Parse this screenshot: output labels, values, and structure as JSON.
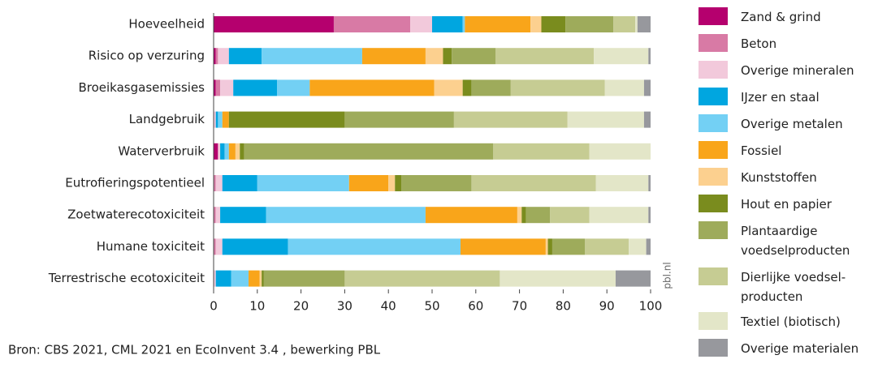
{
  "chart_data": {
    "type": "stacked_bar_horizontal",
    "categories": [
      "Hoeveelheid",
      "Risico op verzuring",
      "Broeikasgasemissies",
      "Landgebruik",
      "Waterverbruik",
      "Eutrofieringspotentieel",
      "Zoetwaterecotoxiciteit",
      "Humane toxiciteit",
      "Terrestrische ecotoxiciteit"
    ],
    "series": [
      {
        "name": "Zand & grind",
        "color": "#b5006e",
        "values": [
          27.5,
          0.5,
          0.5,
          0,
          1,
          0,
          0,
          0,
          0
        ]
      },
      {
        "name": "Beton",
        "color": "#d87aa5",
        "values": [
          17.5,
          0.5,
          1,
          0,
          0,
          0.5,
          0.5,
          0.5,
          0
        ]
      },
      {
        "name": "Overige mineralen",
        "color": "#f2c9db",
        "values": [
          5,
          2.5,
          3,
          0.5,
          0.5,
          1.5,
          1,
          1.5,
          0.5
        ]
      },
      {
        "name": "IJzer en staal",
        "color": "#00a6e0",
        "values": [
          7,
          7.5,
          10,
          0.5,
          1,
          8,
          10.5,
          15,
          3.5
        ]
      },
      {
        "name": "Overige metalen",
        "color": "#73d0f4",
        "values": [
          0.5,
          23,
          7.5,
          1,
          1,
          21,
          36.5,
          39.5,
          4
        ]
      },
      {
        "name": "Fossiel",
        "color": "#f9a51a",
        "values": [
          15,
          14.5,
          28.5,
          1.5,
          1.5,
          9,
          21,
          19.5,
          2.5
        ]
      },
      {
        "name": "Kunststoffen",
        "color": "#fcd08f",
        "values": [
          2.5,
          4,
          6.5,
          0,
          1,
          1.5,
          1,
          0.5,
          0.5
        ]
      },
      {
        "name": "Hout en papier",
        "color": "#7a8c1e",
        "values": [
          5.5,
          2,
          2,
          26.5,
          1,
          1.5,
          1,
          1,
          0.5
        ]
      },
      {
        "name": "Plantaardige voedselproducten",
        "color": "#9eab5b",
        "values": [
          11,
          10,
          9,
          25,
          57,
          16,
          5.5,
          7.5,
          18.5
        ]
      },
      {
        "name": "Dierlijke voedsel-producten",
        "color": "#c6cc93",
        "values": [
          5,
          22.5,
          21.5,
          26,
          22,
          28.5,
          9,
          10,
          35.5
        ]
      },
      {
        "name": "Textiel (biotisch)",
        "color": "#e3e6c8",
        "values": [
          0.5,
          12.5,
          9,
          17.5,
          14,
          12,
          13.5,
          4,
          26.5
        ]
      },
      {
        "name": "Overige materialen",
        "color": "#97989d",
        "values": [
          3,
          0.5,
          1.5,
          1.5,
          0,
          0.5,
          0.5,
          1,
          8
        ]
      }
    ],
    "xlim": [
      0,
      100
    ],
    "xticks": [
      0,
      10,
      20,
      30,
      40,
      50,
      60,
      70,
      80,
      90,
      100
    ],
    "watermark": "pbl.nl",
    "source": "Bron: CBS 2021, CML 2021 en EcoInvent 3.4 , bewerking PBL"
  }
}
